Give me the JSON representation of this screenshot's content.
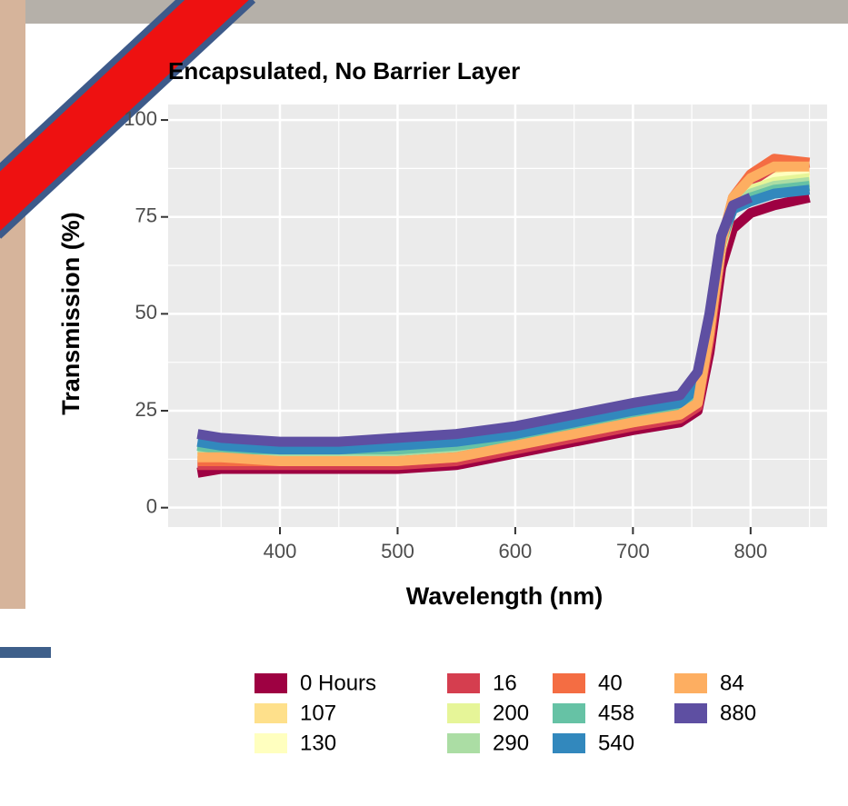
{
  "chart_data": {
    "type": "line",
    "title": "Encapsulated, No Barrier Layer",
    "x_label": "Wavelength (nm)",
    "y_label": "Transmission (%)",
    "x": [
      330,
      350,
      400,
      450,
      500,
      550,
      600,
      650,
      700,
      740,
      755,
      765,
      775,
      785,
      800,
      820,
      850
    ],
    "series": [
      {
        "name": "0 Hours",
        "color": "#9e0142",
        "values": [
          9,
          10,
          10,
          10,
          10,
          11,
          14,
          17,
          20,
          22,
          25,
          40,
          62,
          72,
          76,
          78,
          80
        ]
      },
      {
        "name": "107",
        "color": "#fee08b",
        "values": [
          13,
          13,
          13,
          13,
          13,
          14,
          16,
          19,
          22,
          24,
          27,
          45,
          67,
          79,
          84,
          86,
          87
        ]
      },
      {
        "name": "130",
        "color": "#ffffbf",
        "values": [
          14,
          14,
          13,
          13,
          13,
          14,
          17,
          20,
          23,
          25,
          28,
          46,
          67,
          79,
          83,
          85,
          86
        ]
      },
      {
        "name": "16",
        "color": "#d53e4f",
        "values": [
          11,
          11,
          11,
          11,
          11,
          12,
          15,
          18,
          21,
          23,
          26,
          43,
          66,
          78,
          84,
          88,
          89
        ]
      },
      {
        "name": "200",
        "color": "#e6f598",
        "values": [
          14,
          14,
          14,
          14,
          14,
          15,
          17,
          20,
          23,
          25,
          28,
          46,
          67,
          78,
          82,
          84,
          85
        ]
      },
      {
        "name": "290",
        "color": "#abdda4",
        "values": [
          15,
          15,
          14,
          14,
          14,
          15,
          18,
          21,
          24,
          26,
          29,
          47,
          68,
          78,
          81,
          83,
          84
        ]
      },
      {
        "name": "40",
        "color": "#f46d43",
        "values": [
          12,
          12,
          12,
          12,
          12,
          13,
          16,
          19,
          22,
          24,
          27,
          45,
          68,
          80,
          86,
          90,
          89
        ]
      },
      {
        "name": "458",
        "color": "#66c2a5",
        "values": [
          16,
          15,
          15,
          15,
          15,
          16,
          18,
          21,
          24,
          26,
          30,
          48,
          68,
          78,
          80,
          82,
          83
        ]
      },
      {
        "name": "540",
        "color": "#3288bd",
        "values": [
          17,
          16,
          15,
          15,
          16,
          17,
          19,
          22,
          25,
          27,
          31,
          49,
          69,
          77,
          79,
          81,
          82
        ]
      },
      {
        "name": "84",
        "color": "#fdae61",
        "values": [
          13,
          13,
          12,
          12,
          12,
          13,
          16,
          19,
          22,
          24,
          27,
          45,
          68,
          80,
          85,
          88,
          88
        ]
      },
      {
        "name": "880",
        "color": "#5e4fa2",
        "values": [
          19,
          18,
          17,
          17,
          18,
          19,
          21,
          24,
          27,
          29,
          35,
          50,
          70,
          78,
          80,
          null,
          null
        ]
      }
    ],
    "xlim": [
      305,
      865
    ],
    "xticks": [
      400,
      500,
      600,
      700,
      800
    ],
    "ylim": [
      -5,
      104
    ],
    "yticks": [
      0,
      25,
      50,
      75,
      100
    ],
    "grid": true
  }
}
